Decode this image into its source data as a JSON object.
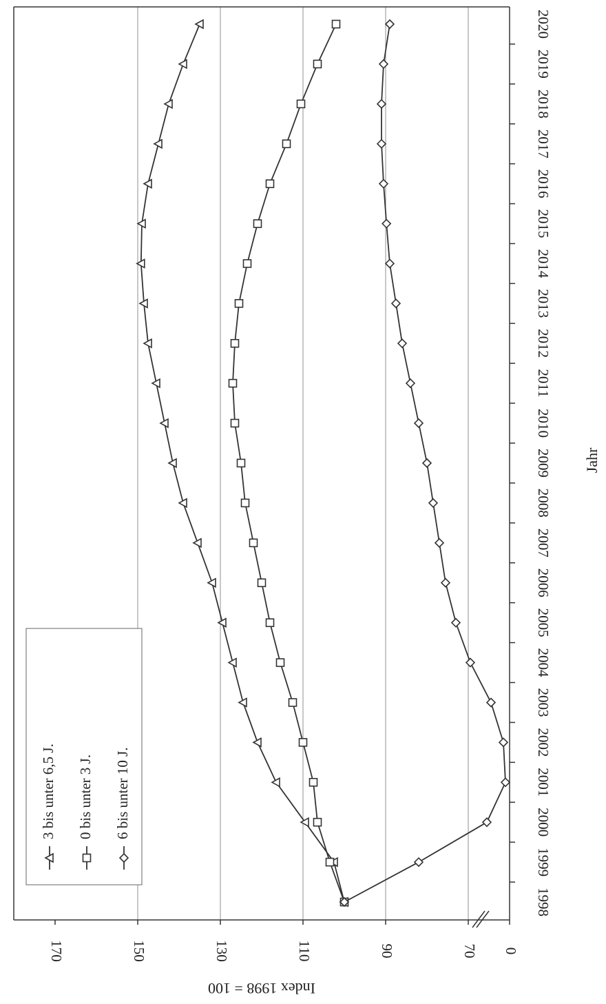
{
  "chart_data": {
    "type": "line",
    "orientation": "rotated-180",
    "xlabel": "Jahr",
    "ylabel": "Index 1998 = 100",
    "ylim": [
      60,
      170
    ],
    "y_ticks": [
      0,
      70,
      90,
      110,
      130,
      150,
      170
    ],
    "axis_break": "between 0 and 70",
    "grid": "horizontal at 70, 90, 110, 130, 150",
    "legend_position": "bottom-left",
    "x": [
      "1998",
      "1999",
      "2000",
      "2001",
      "2002",
      "2003",
      "2004",
      "2005",
      "2006",
      "2007",
      "2008",
      "2009",
      "2010",
      "2011",
      "2012",
      "2013",
      "2014",
      "2015",
      "2016",
      "2017",
      "2018",
      "2019",
      "2020"
    ],
    "series": [
      {
        "name": "3 bis unter 6,5 J.",
        "marker": "triangle",
        "values": [
          100,
          102.5,
          109.5,
          116.5,
          121,
          124.5,
          127,
          129.5,
          132,
          135.5,
          139,
          141.5,
          143.5,
          145.5,
          147.5,
          148.5,
          149.2,
          149,
          147.5,
          145,
          142.5,
          139,
          135
        ]
      },
      {
        "name": "0 bis unter 3 J.",
        "marker": "square",
        "values": [
          100,
          103.5,
          106.5,
          107.5,
          110,
          112.5,
          115.5,
          118,
          120,
          122,
          124,
          125,
          126.5,
          127,
          126.5,
          125.5,
          123.5,
          121,
          118,
          114,
          110.5,
          106.5,
          102
        ]
      },
      {
        "name": "6 bis unter 10 J.",
        "marker": "diamond",
        "values": [
          100,
          82,
          65.5,
          61,
          61.5,
          64.5,
          69.5,
          73,
          75.5,
          77,
          78.5,
          80,
          82,
          84,
          86,
          87.5,
          89,
          89.8,
          90.5,
          91,
          91,
          90.5,
          89
        ]
      }
    ]
  }
}
